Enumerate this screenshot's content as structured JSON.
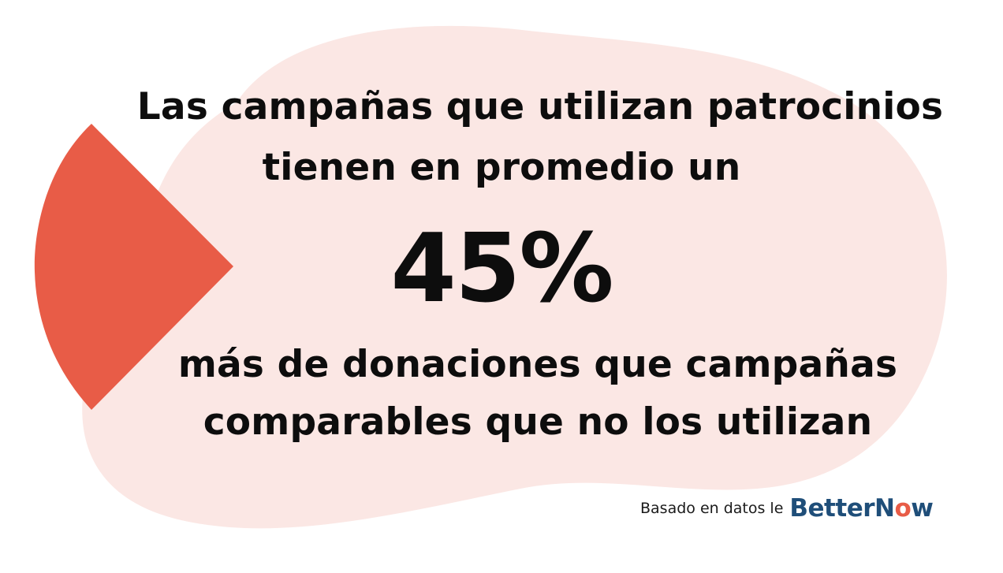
{
  "headline": {
    "line1": "Las campañas que utilizan patrocinios",
    "line2": "tienen en promedio un"
  },
  "stat": {
    "value": "45%"
  },
  "subtext": {
    "line1": "más de donaciones que campañas",
    "line2": "comparables que no los utilizan"
  },
  "credit": {
    "text": "Basado en datos le",
    "logo_part1": "Better",
    "logo_part2": "N",
    "logo_part3": "o",
    "logo_part4": "w"
  },
  "colors": {
    "background": "#ffffff",
    "blob": "#fbe7e4",
    "wedge": "#e85c47",
    "logo_blue": "#1f4e79",
    "logo_red": "#e85c47",
    "text": "#0d0d0d"
  }
}
